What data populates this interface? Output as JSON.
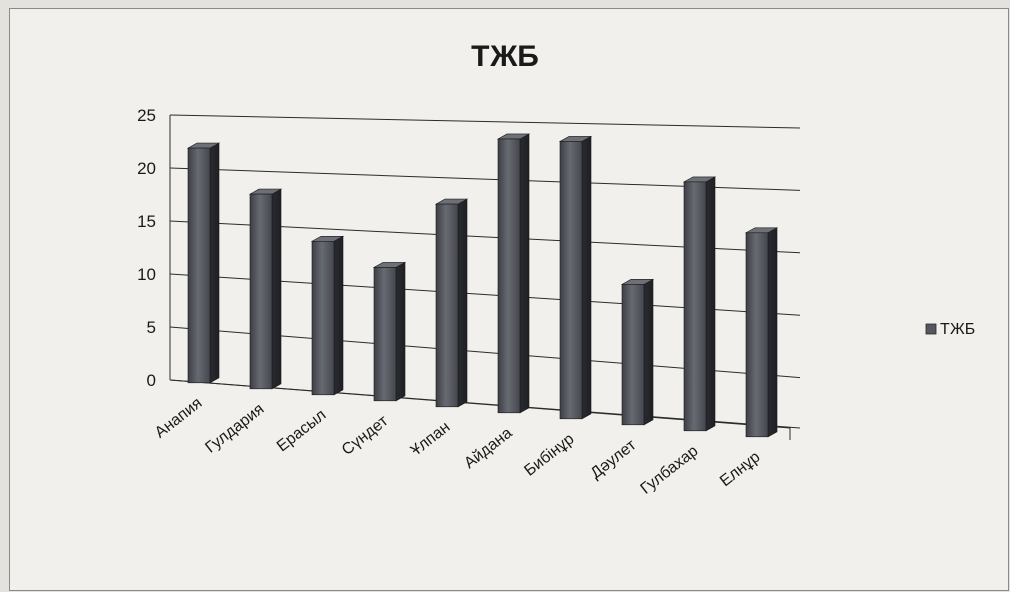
{
  "chart_data": {
    "type": "bar",
    "title": "ТЖБ",
    "categories": [
      "Анапия",
      "Гулдария",
      "Ерасыл",
      "Сүндет",
      "Ұлпан",
      "Айдана",
      "Бибінұр",
      "Дәулет",
      "Гулбахар",
      "Елнұр"
    ],
    "series": [
      {
        "name": "ТЖБ",
        "values": [
          22,
          18,
          14,
          12,
          18,
          24,
          24,
          12,
          21,
          17
        ]
      }
    ],
    "ylim": [
      0,
      25
    ],
    "yticks": [
      0,
      5,
      10,
      15,
      20,
      25
    ],
    "grid": true,
    "legend_position": "right",
    "bar_color": "#55575e"
  }
}
